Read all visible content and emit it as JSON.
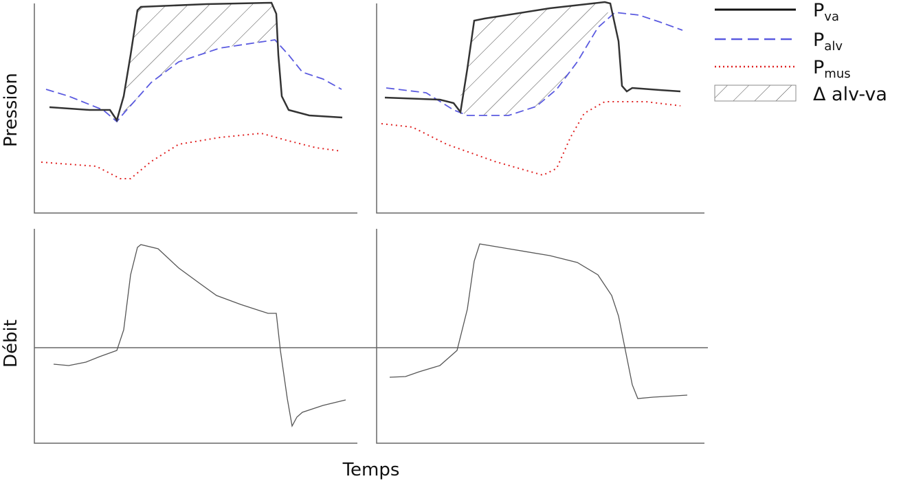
{
  "axes": {
    "pressure_label": "Pression",
    "flow_label": "Débit",
    "time_label": "Temps"
  },
  "legend": [
    {
      "main": "P",
      "sub": "va"
    },
    {
      "main": "P",
      "sub": "alv"
    },
    {
      "main": "P",
      "sub": "mus"
    },
    {
      "main": "Δ alv-va"
    }
  ]
}
